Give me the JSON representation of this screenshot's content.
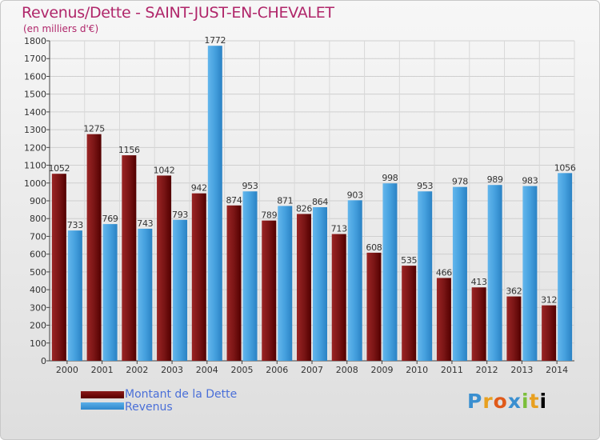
{
  "title": "Revenus/Dette - SAINT-JUST-EN-CHEVALET",
  "subtitle": "(en milliers d'€)",
  "logo_text": "Proxiti",
  "colors": {
    "title": "#b0266a",
    "debt": "#6b0f0f",
    "revenue": "#4aa3e0",
    "legend_text": "#4a6fd8"
  },
  "chart_data": {
    "type": "bar",
    "categories": [
      "2000",
      "2001",
      "2002",
      "2003",
      "2004",
      "2005",
      "2006",
      "2007",
      "2008",
      "2009",
      "2010",
      "2011",
      "2012",
      "2013",
      "2014"
    ],
    "series": [
      {
        "name": "Montant de la Dette",
        "values": [
          1052,
          1275,
          1156,
          1042,
          942,
          874,
          789,
          826,
          713,
          608,
          535,
          466,
          413,
          362,
          312
        ]
      },
      {
        "name": "Revenus",
        "values": [
          733,
          769,
          743,
          793,
          1772,
          953,
          871,
          864,
          903,
          998,
          953,
          978,
          989,
          983,
          1056
        ]
      }
    ],
    "yticks": [
      0,
      100,
      200,
      300,
      400,
      500,
      600,
      700,
      800,
      900,
      1000,
      1100,
      1200,
      1300,
      1400,
      1500,
      1600,
      1700,
      1800
    ],
    "ylim": [
      0,
      1800
    ],
    "grid": true,
    "legend_position": "bottom-left"
  }
}
